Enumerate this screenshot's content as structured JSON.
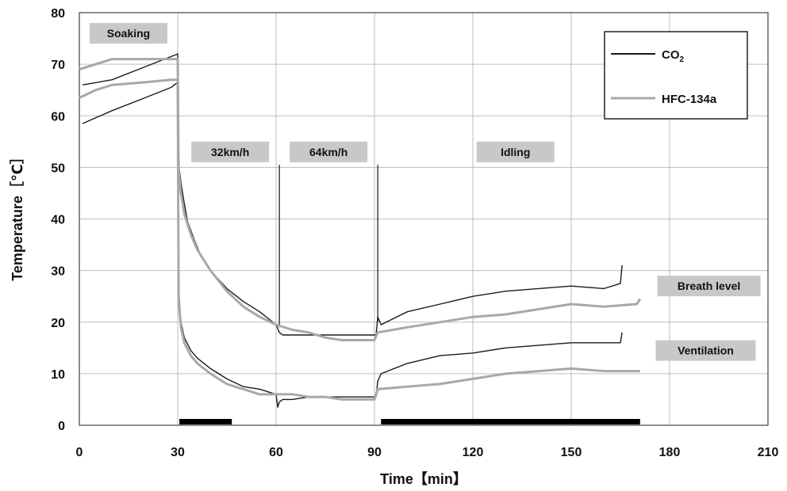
{
  "chart_data": {
    "type": "line",
    "xlabel": "Time【min】",
    "ylabel": "Temperature［℃］",
    "xlim": [
      0,
      210
    ],
    "ylim": [
      0,
      80
    ],
    "xticks": [
      0,
      30,
      60,
      90,
      120,
      150,
      180,
      210
    ],
    "yticks": [
      0,
      10,
      20,
      30,
      40,
      50,
      60,
      70,
      80
    ],
    "grid": true,
    "legend": {
      "position": "top-right",
      "entries": [
        {
          "sub_base": "CO",
          "sub": "2",
          "color": "#1a1a1a"
        },
        {
          "label": "HFC-134a",
          "color": "#a8a8a8"
        }
      ]
    },
    "phase_labels": [
      {
        "text": "Soaking",
        "x": 15,
        "y": 76
      },
      {
        "text": "32km/h",
        "x": 46,
        "y": 53
      },
      {
        "text": "64km/h",
        "x": 76,
        "y": 53
      },
      {
        "text": "Idling",
        "x": 133,
        "y": 53
      }
    ],
    "annotations": [
      {
        "text": "Breath level",
        "x": 192,
        "y": 27
      },
      {
        "text": "Ventilation",
        "x": 191,
        "y": 14.5
      }
    ],
    "phase_dividers": [
      {
        "x": 61,
        "y_from": 19,
        "y_to": 50.5
      },
      {
        "x": 91,
        "y_from": 20,
        "y_to": 50.5
      }
    ],
    "time_bars": [
      {
        "x_from": 30.5,
        "x_to": 46.5
      },
      {
        "x_from": 92,
        "x_to": 171
      }
    ],
    "series": [
      {
        "name": "CO2 breath level",
        "color": "#1a1a1a",
        "x": [
          1,
          10,
          20,
          28,
          30,
          30.2,
          31,
          32,
          33,
          35,
          37,
          40,
          45,
          50,
          55,
          60,
          61,
          62,
          65,
          70,
          75,
          90.5,
          91,
          92,
          100,
          110,
          120,
          130,
          140,
          150,
          160,
          165,
          165.5
        ],
        "y": [
          66,
          67,
          69.5,
          71.5,
          72,
          51,
          47,
          43,
          39.5,
          36,
          33,
          30,
          26.5,
          24,
          22,
          19.5,
          18,
          17.5,
          17.5,
          17.5,
          17.5,
          17.5,
          21,
          19.5,
          22,
          23.5,
          25,
          26,
          26.5,
          27,
          26.5,
          27.5,
          31
        ]
      },
      {
        "name": "CO2 ventilation",
        "color": "#1a1a1a",
        "x": [
          1,
          10,
          20,
          28,
          30,
          30.2,
          31,
          32,
          34,
          36,
          40,
          45,
          50,
          55,
          60,
          60.5,
          61,
          62,
          65,
          70,
          75,
          90.5,
          91,
          92,
          100,
          110,
          120,
          130,
          140,
          150,
          160,
          165,
          165.5
        ],
        "y": [
          58.5,
          61,
          63.5,
          65.5,
          66.5,
          27,
          20,
          17,
          14.5,
          13,
          11,
          9,
          7.5,
          7,
          6,
          3.5,
          4.5,
          5,
          5,
          5.5,
          5.5,
          5.5,
          8.5,
          10,
          12,
          13.5,
          14,
          15,
          15.5,
          16,
          16,
          16,
          18
        ]
      },
      {
        "name": "HFC-134a breath level",
        "color": "#a8a8a8",
        "x": [
          0,
          5,
          10,
          20,
          28,
          30,
          30.3,
          31,
          32,
          34,
          36,
          40,
          45,
          50,
          55,
          60,
          65,
          70,
          75,
          80,
          90,
          91,
          100,
          110,
          120,
          130,
          140,
          150,
          160,
          170,
          171
        ],
        "y": [
          69,
          70,
          71,
          71,
          71,
          71,
          49,
          45,
          41,
          37,
          34,
          30,
          26,
          23,
          21,
          19.5,
          18.5,
          18,
          17,
          16.5,
          16.5,
          18,
          19,
          20,
          21,
          21.5,
          22.5,
          23.5,
          23,
          23.5,
          24.5
        ]
      },
      {
        "name": "HFC-134a ventilation",
        "color": "#a8a8a8",
        "x": [
          0,
          5,
          10,
          20,
          28,
          30,
          30.3,
          31,
          32,
          34,
          36,
          40,
          45,
          50,
          55,
          60,
          65,
          70,
          75,
          80,
          90,
          91,
          100,
          110,
          120,
          130,
          140,
          150,
          160,
          170,
          171
        ],
        "y": [
          63.5,
          65,
          66,
          66.5,
          67,
          67,
          24,
          19,
          16,
          13.5,
          12,
          10,
          8,
          7,
          6,
          6,
          6,
          5.5,
          5.5,
          5,
          5,
          7,
          7.5,
          8,
          9,
          10,
          10.5,
          11,
          10.5,
          10.5,
          10.5
        ]
      }
    ]
  }
}
